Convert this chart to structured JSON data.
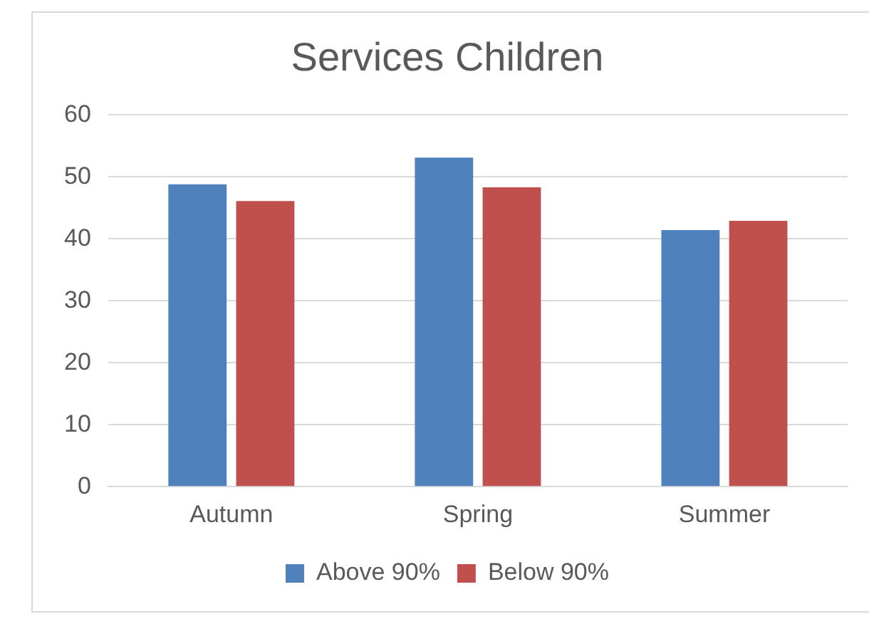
{
  "chart_data": {
    "type": "bar",
    "title": "Services Children",
    "categories": [
      "Autumn",
      "Spring",
      "Summer"
    ],
    "series": [
      {
        "name": "Above 90%",
        "color": "#4f81bd",
        "values": [
          48.8,
          53.1,
          41.4
        ]
      },
      {
        "name": "Below 90%",
        "color": "#c0504d",
        "values": [
          46.1,
          48.3,
          42.9
        ]
      }
    ],
    "ylim": [
      0,
      60
    ],
    "yticks": [
      0,
      10,
      20,
      30,
      40,
      50,
      60
    ],
    "grid": "y",
    "legend": "bottom"
  }
}
